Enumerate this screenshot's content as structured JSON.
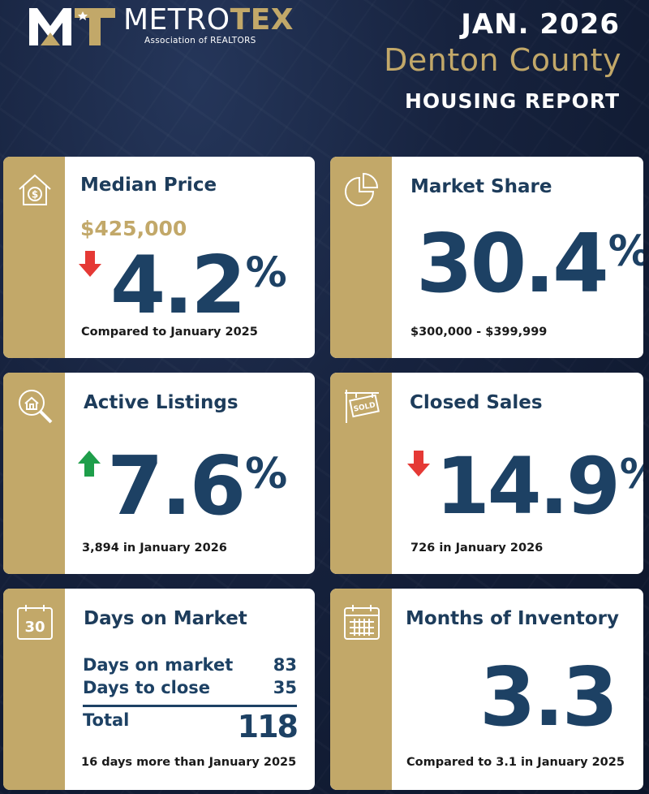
{
  "header": {
    "logo_word_a": "METRO",
    "logo_word_b": "TEX",
    "logo_sub": "Association of REALTORS",
    "date": "JAN. 2026",
    "county": "Denton County",
    "report": "HOUSING REPORT"
  },
  "colors": {
    "navy": "#1d4164",
    "gold": "#c2a869",
    "red": "#e53935",
    "green": "#1e9e4a"
  },
  "median_price": {
    "icon": "house-dollar-icon",
    "title": "Median Price",
    "price": "$425,000",
    "direction": "down",
    "value": "4.2",
    "unit": "%",
    "note": "Compared to January 2025"
  },
  "market_share": {
    "icon": "pie-chart-icon",
    "title": "Market Share",
    "value": "30.4",
    "unit": "%",
    "note": "$300,000 - $399,999"
  },
  "active_listings": {
    "icon": "house-search-icon",
    "title": "Active Listings",
    "direction": "up",
    "value": "7.6",
    "unit": "%",
    "note": "3,894 in January 2026"
  },
  "closed_sales": {
    "icon": "sold-sign-icon",
    "title": "Closed Sales",
    "direction": "down",
    "value": "14.9",
    "unit": "%",
    "note": "726 in January 2026"
  },
  "days_on_market": {
    "icon": "calendar-30-icon",
    "icon_text": "30",
    "title": "Days on Market",
    "rows": [
      {
        "label": "Days on market",
        "value": "83"
      },
      {
        "label": "Days to close",
        "value": "35"
      }
    ],
    "total_label": "Total",
    "total_value": "118",
    "note": "16 days more than January 2025"
  },
  "months_inventory": {
    "icon": "calendar-grid-icon",
    "title": "Months of Inventory",
    "value": "3.3",
    "note": "Compared to 3.1 in January 2025"
  }
}
